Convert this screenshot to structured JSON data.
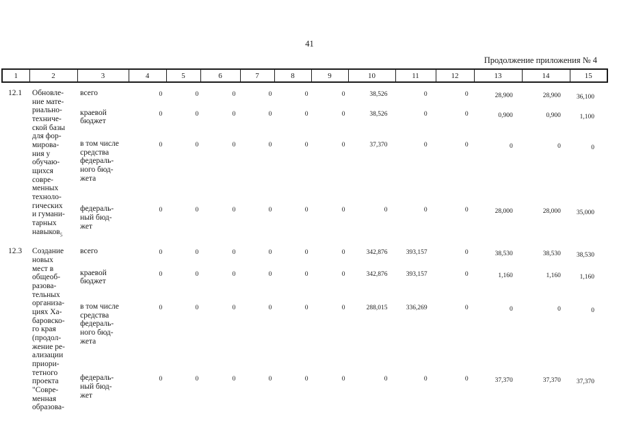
{
  "page": {
    "number": "41",
    "continuation_label": "Продолжение приложения № 4"
  },
  "table": {
    "column_numbers": [
      "1",
      "2",
      "3",
      "4",
      "5",
      "6",
      "7",
      "8",
      "9",
      "10",
      "11",
      "12",
      "13",
      "14",
      "15"
    ],
    "rows": [
      {
        "idx": "12.1",
        "title_lines": [
          "Обновле-",
          "ние мате-",
          "риально-",
          "техниче-",
          "ской базы",
          "для фор-",
          "мирова-",
          "ния у",
          "обучаю-",
          "щихся",
          "совре-",
          "менных",
          "техноло-",
          "гических",
          "и гумани-",
          "тарных",
          "навыков"
        ],
        "title_sup": "5",
        "budget_rows": [
          {
            "label_lines": [
              "всего"
            ],
            "values": [
              "0",
              "0",
              "0",
              "0",
              "0",
              "0",
              "38,526",
              "0",
              "0",
              "28,900",
              "28,900",
              "36,100"
            ]
          },
          {
            "label_lines": [
              "краевой",
              "бюджет"
            ],
            "values": [
              "0",
              "0",
              "0",
              "0",
              "0",
              "0",
              "38,526",
              "0",
              "0",
              "0,900",
              "0,900",
              "1,100"
            ]
          },
          {
            "label_lines": [
              "в том числе",
              "средства",
              "федераль-",
              "ного бюд-",
              "жета"
            ],
            "values": [
              "0",
              "0",
              "0",
              "0",
              "0",
              "0",
              "37,370",
              "0",
              "0",
              "0",
              "0",
              "0"
            ]
          },
          {
            "label_lines": [
              "федераль-",
              "ный бюд-",
              "жет"
            ],
            "values": [
              "0",
              "0",
              "0",
              "0",
              "0",
              "0",
              "0",
              "0",
              "0",
              "28,000",
              "28,000",
              "35,000"
            ]
          }
        ]
      },
      {
        "idx": "12.3",
        "title_lines": [
          "Создание",
          "новых",
          "мест в",
          "общеоб-",
          "разова-",
          "тельных",
          "организа-",
          "циях Ха-",
          "баровско-",
          "го края",
          "(продол-",
          "жение ре-",
          "ализации",
          "приори-",
          "тетного",
          "проекта",
          "\"Совре-",
          "менная",
          "образова-"
        ],
        "title_sup": "",
        "budget_rows": [
          {
            "label_lines": [
              "всего"
            ],
            "values": [
              "0",
              "0",
              "0",
              "0",
              "0",
              "0",
              "342,876",
              "393,157",
              "0",
              "38,530",
              "38,530",
              "38,530"
            ]
          },
          {
            "label_lines": [
              "краевой",
              "бюджет"
            ],
            "values": [
              "0",
              "0",
              "0",
              "0",
              "0",
              "0",
              "342,876",
              "393,157",
              "0",
              "1,160",
              "1,160",
              "1,160"
            ]
          },
          {
            "label_lines": [
              "в том числе",
              "средства",
              "федераль-",
              "ного бюд-",
              "жета"
            ],
            "values": [
              "0",
              "0",
              "0",
              "0",
              "0",
              "0",
              "288,015",
              "336,269",
              "0",
              "0",
              "0",
              "0"
            ]
          },
          {
            "label_lines": [
              "федераль-",
              "ный бюд-",
              "жет"
            ],
            "values": [
              "0",
              "0",
              "0",
              "0",
              "0",
              "0",
              "0",
              "0",
              "0",
              "37,370",
              "37,370",
              "37,370"
            ]
          }
        ]
      }
    ]
  }
}
